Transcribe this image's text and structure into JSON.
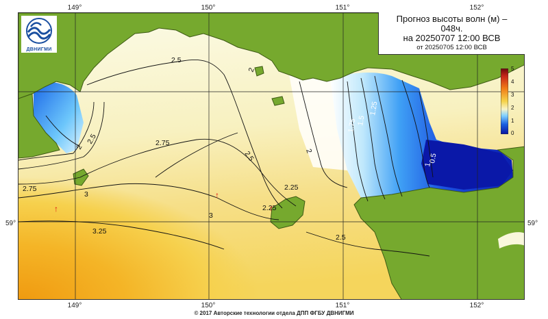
{
  "title": {
    "line1": "Прогноз высоты волн (м) –",
    "line2": "048ч.",
    "line3": "на 20250707 12:00 ВСВ",
    "line4": "от 20250705 12:00 ВСВ"
  },
  "logo": {
    "text": "ДВНИГМИ",
    "icon": "wave-logo-icon"
  },
  "axes": {
    "lon_ticks": [
      "149°",
      "150°",
      "151°",
      "152°"
    ],
    "lat_tick": "59°"
  },
  "legend": {
    "labels": [
      "5",
      "4",
      "3",
      "2",
      "1",
      "0"
    ],
    "colors": [
      "#6b0a0a",
      "#c8281a",
      "#f07a16",
      "#f5d34a",
      "#f8f4c8",
      "#7fd0ff",
      "#1a60e0",
      "#0a14a0"
    ]
  },
  "contour_labels": [
    "2.5",
    "2",
    "2.75",
    "2.5",
    "2.25",
    "2.75",
    "3",
    "3",
    "3.25",
    "2.5",
    "2.25",
    "2.5",
    "2",
    "2",
    "1.75",
    "1.5",
    "1.25",
    "1",
    "0.5"
  ],
  "arrows": [
    "↑",
    "↑",
    "↑"
  ],
  "colors": {
    "land": "#76a92e",
    "land_border": "#3d5a14",
    "sea_calm": "#f9f7dc",
    "sea_mid": "#f6e79a",
    "sea_high": "#f2a61d",
    "low_wave_blue": "#1e5ce8",
    "deep_blue": "#0a14a0"
  },
  "footer": "© 2017 Авторские технологии отдела ДПП ФГБУ ДВНИГМИ"
}
